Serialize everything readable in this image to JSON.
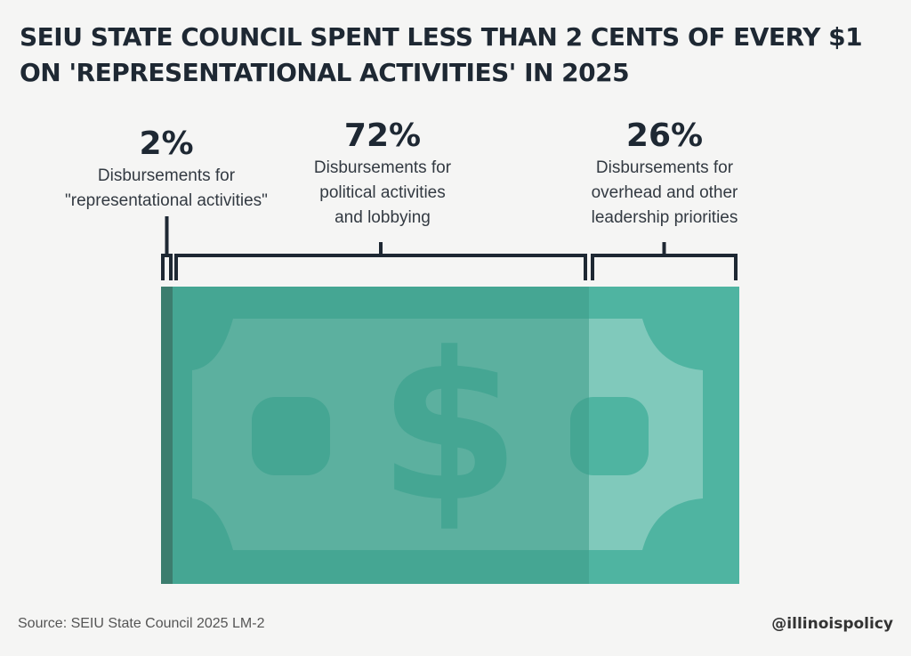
{
  "title_lines": [
    "SEIU STATE COUNCIL SPENT LESS THAN 2 CENTS OF EVERY $1",
    "ON 'REPRESENTATIONAL ACTIVITIES' IN 2025"
  ],
  "chart_data": {
    "type": "bar",
    "orientation": "horizontal-stacked",
    "categories": [
      "Disbursements for \"representational activities\"",
      "Disbursements for political activities and lobbying",
      "Disbursements for overhead and other leadership priorities"
    ],
    "values": [
      2,
      72,
      26
    ],
    "unit": "%",
    "segments": [
      {
        "pct": "2%",
        "lines": [
          "Disbursements for",
          "\"representational activities\""
        ],
        "value": 2,
        "color": "#3b7a6c"
      },
      {
        "pct": "72%",
        "lines": [
          "Disbursements for",
          "political activities",
          "and lobbying"
        ],
        "value": 72,
        "color": "#3e9a88"
      },
      {
        "pct": "26%",
        "lines": [
          "Disbursements for",
          "overhead and other",
          "leadership priorities"
        ],
        "value": 26,
        "color": "#4fb4a1"
      }
    ],
    "bill_icon": "dollar-bill-icon"
  },
  "colors": {
    "bracket": "#1e2833",
    "bill_base": "#4fb4a1",
    "title": "#1e2833"
  },
  "source": "Source: SEIU State Council 2025 LM-2",
  "handle": "@illinoispolicy"
}
